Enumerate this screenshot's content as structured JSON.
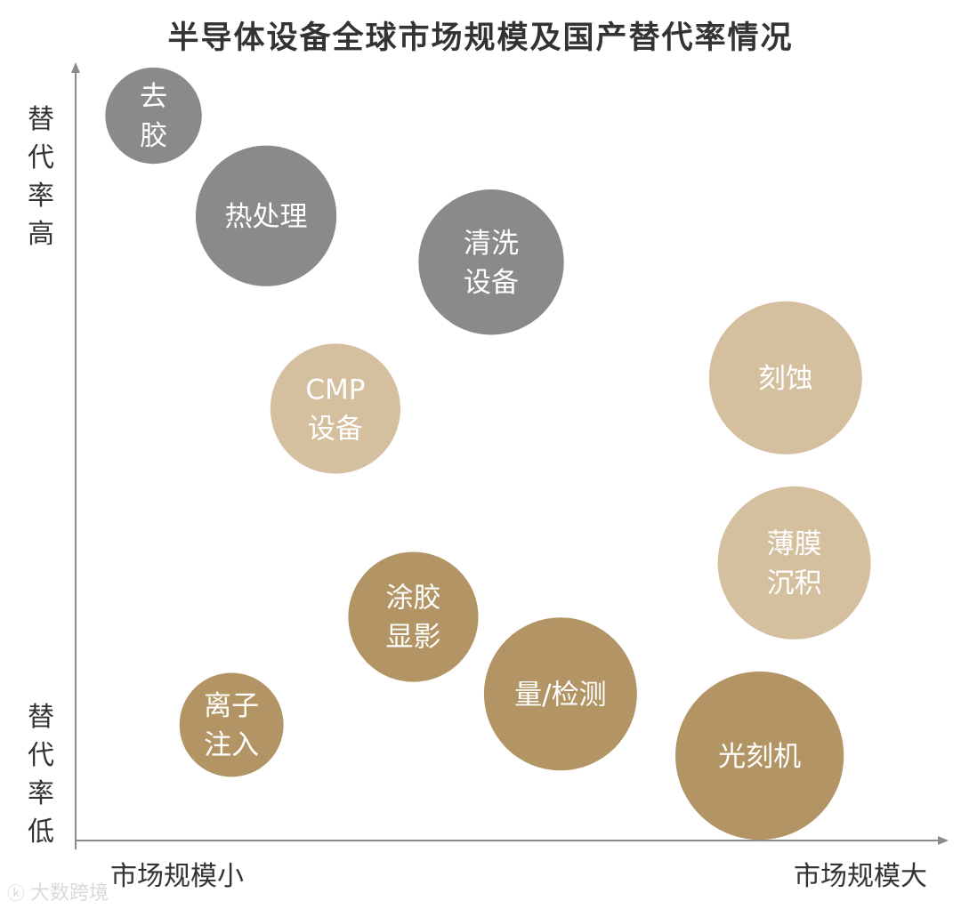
{
  "chart_data": {
    "type": "bubble",
    "title": "半导体设备全球市场规模及国产替代率情况",
    "xlabel_small": "市场规模小",
    "xlabel_large": "市场规模大",
    "ylabel_high": "替代率高",
    "ylabel_low": "替代率低",
    "colors": {
      "high": "#8a8a8a",
      "mid": "#d4bf9f",
      "low": "#b39565"
    },
    "bubbles": [
      {
        "name": "去胶",
        "lines": [
          "去",
          "胶"
        ],
        "x": 0.09,
        "y": 0.94,
        "size": 0.63,
        "group": "high"
      },
      {
        "name": "热处理",
        "lines": [
          "热处理"
        ],
        "x": 0.22,
        "y": 0.81,
        "size": 0.92,
        "group": "high"
      },
      {
        "name": "清洗设备",
        "lines": [
          "清洗",
          "设备"
        ],
        "x": 0.48,
        "y": 0.75,
        "size": 0.95,
        "group": "high"
      },
      {
        "name": "CMP设备",
        "lines": [
          "CMP",
          "设备"
        ],
        "x": 0.3,
        "y": 0.56,
        "size": 0.85,
        "group": "mid"
      },
      {
        "name": "刻蚀",
        "lines": [
          "刻蚀"
        ],
        "x": 0.82,
        "y": 0.6,
        "size": 1.0,
        "group": "mid"
      },
      {
        "name": "薄膜沉积",
        "lines": [
          "薄膜",
          "沉积"
        ],
        "x": 0.83,
        "y": 0.36,
        "size": 1.0,
        "group": "mid"
      },
      {
        "name": "涂胶显影",
        "lines": [
          "涂胶",
          "显影"
        ],
        "x": 0.39,
        "y": 0.29,
        "size": 0.85,
        "group": "low"
      },
      {
        "name": "量/检测",
        "lines": [
          "量/检测"
        ],
        "x": 0.56,
        "y": 0.19,
        "size": 1.0,
        "group": "low"
      },
      {
        "name": "离子注入",
        "lines": [
          "离子",
          "注入"
        ],
        "x": 0.18,
        "y": 0.15,
        "size": 0.68,
        "group": "low"
      },
      {
        "name": "光刻机",
        "lines": [
          "光刻机"
        ],
        "x": 0.79,
        "y": 0.11,
        "size": 1.1,
        "group": "low"
      }
    ]
  },
  "watermark": {
    "icon": "logo-icon",
    "text": "大数跨境"
  }
}
